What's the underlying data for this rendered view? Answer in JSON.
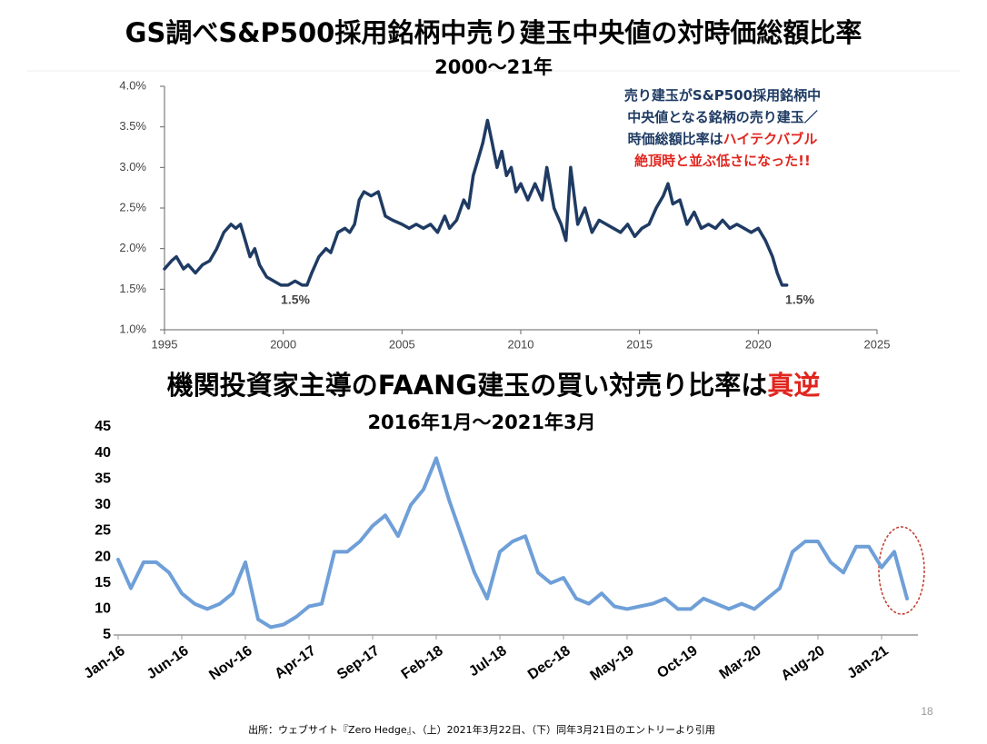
{
  "chart_data": [
    {
      "type": "line",
      "title": "GS調べS&P500採用銘柄中売り建玉中央値の対時価総額比率",
      "subtitle": "2000～21年",
      "annotations": [
        "1.5%",
        "1.5%"
      ],
      "note": [
        [
          {
            "text": "売り建玉がS&P500採用銘柄中",
            "color": "#1f3b63"
          }
        ],
        [
          {
            "text": "中央値となる銘柄の売り建玉／",
            "color": "#1f3b63"
          }
        ],
        [
          {
            "text": "時価総額比率は",
            "color": "#1f3b63"
          },
          {
            "text": "ハイテクバブル",
            "color": "#e0261f"
          }
        ],
        [
          {
            "text": "絶頂時と並ぶ低さになった!!",
            "color": "#e0261f"
          }
        ]
      ],
      "x": [
        1995.0,
        1995.3,
        1995.5,
        1995.8,
        1996.0,
        1996.3,
        1996.6,
        1996.9,
        1997.2,
        1997.5,
        1997.8,
        1998.0,
        1998.2,
        1998.4,
        1998.6,
        1998.8,
        1999.0,
        1999.3,
        1999.6,
        1999.9,
        2000.2,
        2000.5,
        2000.8,
        2001.0,
        2001.2,
        2001.5,
        2001.8,
        2002.0,
        2002.3,
        2002.6,
        2002.8,
        2003.0,
        2003.2,
        2003.4,
        2003.7,
        2004.0,
        2004.3,
        2004.6,
        2005.0,
        2005.3,
        2005.6,
        2005.9,
        2006.2,
        2006.5,
        2006.8,
        2007.0,
        2007.3,
        2007.6,
        2007.8,
        2008.0,
        2008.2,
        2008.4,
        2008.6,
        2008.8,
        2009.0,
        2009.2,
        2009.4,
        2009.6,
        2009.8,
        2010.0,
        2010.3,
        2010.6,
        2010.9,
        2011.1,
        2011.4,
        2011.7,
        2011.9,
        2012.1,
        2012.4,
        2012.7,
        2013.0,
        2013.3,
        2013.6,
        2013.9,
        2014.2,
        2014.5,
        2014.8,
        2015.1,
        2015.4,
        2015.7,
        2016.0,
        2016.2,
        2016.4,
        2016.7,
        2017.0,
        2017.3,
        2017.6,
        2017.9,
        2018.2,
        2018.5,
        2018.8,
        2019.1,
        2019.4,
        2019.7,
        2020.0,
        2020.3,
        2020.6,
        2020.8,
        2021.0,
        2021.2
      ],
      "series": [
        {
          "name": "売り建玉中央値の対時価総額比率",
          "color": "#1f3b63",
          "values": [
            1.75,
            1.85,
            1.9,
            1.75,
            1.8,
            1.7,
            1.8,
            1.85,
            2.0,
            2.2,
            2.3,
            2.25,
            2.3,
            2.1,
            1.9,
            2.0,
            1.8,
            1.65,
            1.6,
            1.55,
            1.55,
            1.6,
            1.55,
            1.55,
            1.7,
            1.9,
            2.0,
            1.95,
            2.2,
            2.25,
            2.2,
            2.3,
            2.6,
            2.7,
            2.65,
            2.7,
            2.4,
            2.35,
            2.3,
            2.25,
            2.3,
            2.25,
            2.3,
            2.2,
            2.4,
            2.25,
            2.35,
            2.6,
            2.5,
            2.9,
            3.1,
            3.3,
            3.58,
            3.3,
            3.0,
            3.2,
            2.9,
            3.0,
            2.7,
            2.8,
            2.6,
            2.8,
            2.6,
            3.0,
            2.5,
            2.3,
            2.1,
            3.0,
            2.3,
            2.5,
            2.2,
            2.35,
            2.3,
            2.25,
            2.2,
            2.3,
            2.15,
            2.25,
            2.3,
            2.5,
            2.65,
            2.8,
            2.55,
            2.6,
            2.3,
            2.45,
            2.25,
            2.3,
            2.25,
            2.35,
            2.25,
            2.3,
            2.25,
            2.2,
            2.25,
            2.1,
            1.9,
            1.7,
            1.55,
            1.55
          ]
        }
      ],
      "xlim": [
        1995,
        2025
      ],
      "xticks": [
        1995,
        2000,
        2005,
        2010,
        2015,
        2020,
        2025
      ],
      "ylim": [
        1.0,
        4.0
      ],
      "yticks": [
        {
          "value": 1.0,
          "label": "1.0%"
        },
        {
          "value": 1.5,
          "label": "1.5%"
        },
        {
          "value": 2.0,
          "label": "2.0%"
        },
        {
          "value": 2.5,
          "label": "2.5%"
        },
        {
          "value": 3.0,
          "label": "3.0%"
        },
        {
          "value": 3.5,
          "label": "3.5%"
        },
        {
          "value": 4.0,
          "label": "4.0%"
        }
      ],
      "grid": false
    },
    {
      "type": "line",
      "title": "機関投資家主導のFAANG建玉の買い対売り比率は",
      "title_highlight": "真逆",
      "title_highlight_color": "#e0261f",
      "subtitle": "2016年1月～2021年3月",
      "categories": [
        "Jan-16",
        null,
        null,
        null,
        null,
        "Jun-16",
        null,
        null,
        null,
        null,
        "Nov-16",
        null,
        null,
        null,
        null,
        "Apr-17",
        null,
        null,
        null,
        null,
        "Sep-17",
        null,
        null,
        null,
        null,
        "Feb-18",
        null,
        null,
        null,
        null,
        "Jul-18",
        null,
        null,
        null,
        null,
        "Dec-18",
        null,
        null,
        null,
        null,
        "May-19",
        null,
        null,
        null,
        null,
        "Oct-19",
        null,
        null,
        null,
        null,
        "Mar-20",
        null,
        null,
        null,
        null,
        "Aug-20",
        null,
        null,
        null,
        null,
        "Jan-21",
        null,
        null
      ],
      "series": [
        {
          "name": "買い対売り比率",
          "color": "#6f9fd8",
          "values": [
            19.5,
            14,
            19,
            19,
            17,
            13,
            11,
            10,
            11,
            13,
            19,
            8,
            6.5,
            7,
            8.5,
            10.5,
            11,
            21,
            21,
            23,
            26,
            28,
            24,
            30,
            33,
            39,
            31,
            24,
            17,
            12,
            21,
            23,
            24,
            17,
            15,
            16,
            12,
            11,
            13,
            10.5,
            10,
            10.5,
            11,
            12,
            10,
            10,
            12,
            11,
            10,
            11,
            10,
            12,
            14,
            21,
            23,
            23,
            19,
            17,
            22,
            22,
            18,
            21,
            12
          ]
        }
      ],
      "ylim": [
        5,
        45
      ],
      "yticks": [
        5,
        10,
        15,
        20,
        25,
        30,
        35,
        40,
        45
      ],
      "grid": false
    }
  ],
  "footer": "出所：ウェブサイト『Zero Hedge』、（上）2021年3月22日、（下）同年3月21日のエントリーより引用",
  "page_number": 18
}
